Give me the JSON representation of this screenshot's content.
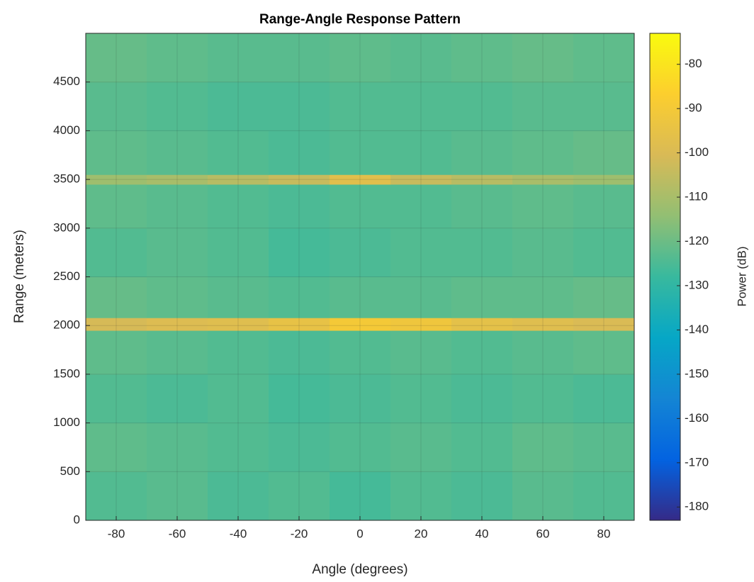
{
  "chart_data": {
    "type": "heatmap",
    "title": "Range-Angle Response Pattern",
    "xlabel": "Angle (degrees)",
    "ylabel": "Range (meters)",
    "colorbar_label": "Power (dB)",
    "colormap": "parula",
    "grid": true,
    "xbins": [
      -90,
      -70,
      -50,
      -30,
      -10,
      10,
      30,
      50,
      70,
      90
    ],
    "ybins": [
      0,
      500,
      1000,
      1500,
      1950,
      2080,
      2500,
      3000,
      3450,
      3550,
      4000,
      4500,
      5000
    ],
    "values": [
      [
        -124,
        -123,
        -125,
        -124,
        -126,
        -124,
        -125,
        -123,
        -124
      ],
      [
        -122,
        -123,
        -124,
        -125,
        -124,
        -123,
        -124,
        -122,
        -123
      ],
      [
        -124,
        -125,
        -124,
        -126,
        -125,
        -124,
        -125,
        -124,
        -125
      ],
      [
        -122,
        -123,
        -124,
        -125,
        -124,
        -123,
        -124,
        -123,
        -122
      ],
      [
        -101,
        -99,
        -98,
        -95,
        -90,
        -92,
        -96,
        -98,
        -100
      ],
      [
        -121,
        -122,
        -123,
        -124,
        -123,
        -123,
        -122,
        -122,
        -121
      ],
      [
        -124,
        -123,
        -124,
        -126,
        -125,
        -124,
        -124,
        -123,
        -124
      ],
      [
        -122,
        -123,
        -124,
        -125,
        -124,
        -124,
        -123,
        -122,
        -123
      ],
      [
        -112,
        -110,
        -107,
        -104,
        -97,
        -104,
        -107,
        -110,
        -112
      ],
      [
        -122,
        -123,
        -124,
        -125,
        -124,
        -124,
        -123,
        -122,
        -121
      ],
      [
        -123,
        -124,
        -125,
        -125,
        -124,
        -124,
        -124,
        -123,
        -123
      ],
      [
        -121,
        -122,
        -123,
        -123,
        -122,
        -123,
        -122,
        -121,
        -122
      ]
    ],
    "xlim": [
      -90,
      90
    ],
    "ylim": [
      0,
      5000
    ],
    "clim": [
      -183,
      -73
    ],
    "xticks": [
      -80,
      -60,
      -40,
      -20,
      0,
      20,
      40,
      60,
      80
    ],
    "yticks": [
      0,
      500,
      1000,
      1500,
      2000,
      2500,
      3000,
      3500,
      4000,
      4500
    ],
    "cticks": [
      -180,
      -170,
      -160,
      -150,
      -140,
      -130,
      -120,
      -110,
      -100,
      -90,
      -80
    ]
  }
}
